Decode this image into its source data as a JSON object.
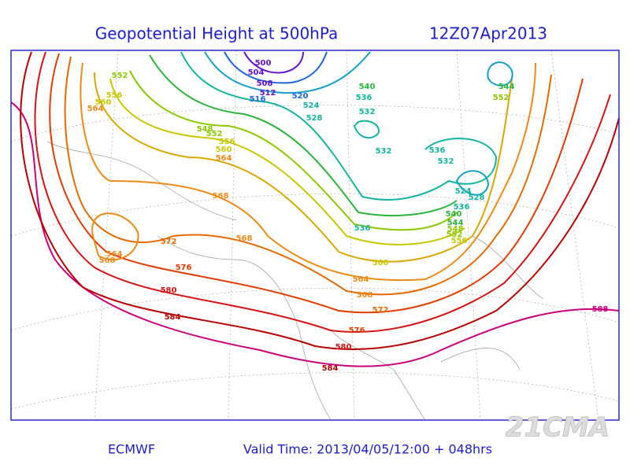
{
  "header": {
    "title": "Geopotential Height at 500hPa",
    "time": "12Z07Apr2013"
  },
  "footer": {
    "source": "ECMWF",
    "valid_time": "Valid Time: 2013/04/05/12:00 + 048hrs"
  },
  "watermark": "21CMA",
  "contour_labels": [
    500,
    504,
    508,
    512,
    516,
    520,
    524,
    528,
    532,
    536,
    540,
    532,
    536,
    532,
    524,
    528,
    536,
    540,
    544,
    548,
    552,
    556,
    536,
    560,
    564,
    568,
    572,
    576,
    580,
    584,
    588,
    584,
    580,
    576,
    572,
    568,
    568,
    564,
    560,
    556,
    552,
    548,
    552,
    556,
    560,
    564,
    568,
    564,
    544,
    552
  ]
}
